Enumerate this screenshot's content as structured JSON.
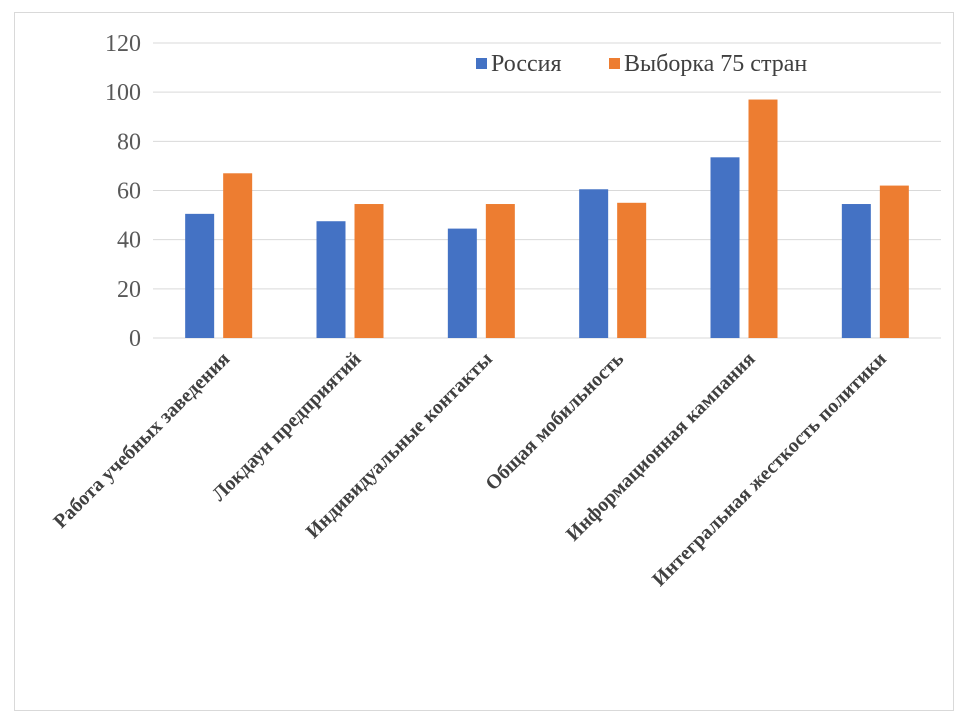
{
  "chart_data": {
    "type": "bar",
    "categories": [
      "Работа учебных заведения",
      "Локдаун предприятий",
      "Индивидуальные контакты",
      "Общая мобильность",
      "Информационная кампания",
      "Интегральная жесткость политики"
    ],
    "series": [
      {
        "name": "Россия",
        "color": "#4472c4",
        "values": [
          50.5,
          47.5,
          44.5,
          60.5,
          73.5,
          54.5
        ]
      },
      {
        "name": "Выборка 75 стран",
        "color": "#ed7d31",
        "values": [
          67,
          54.5,
          54.5,
          55,
          97,
          62
        ]
      }
    ],
    "title": "",
    "xlabel": "",
    "ylabel": "",
    "ylim": [
      0,
      120
    ],
    "yticks": [
      0,
      20,
      40,
      60,
      80,
      100,
      120
    ],
    "grid": true,
    "legend": "top-right"
  }
}
